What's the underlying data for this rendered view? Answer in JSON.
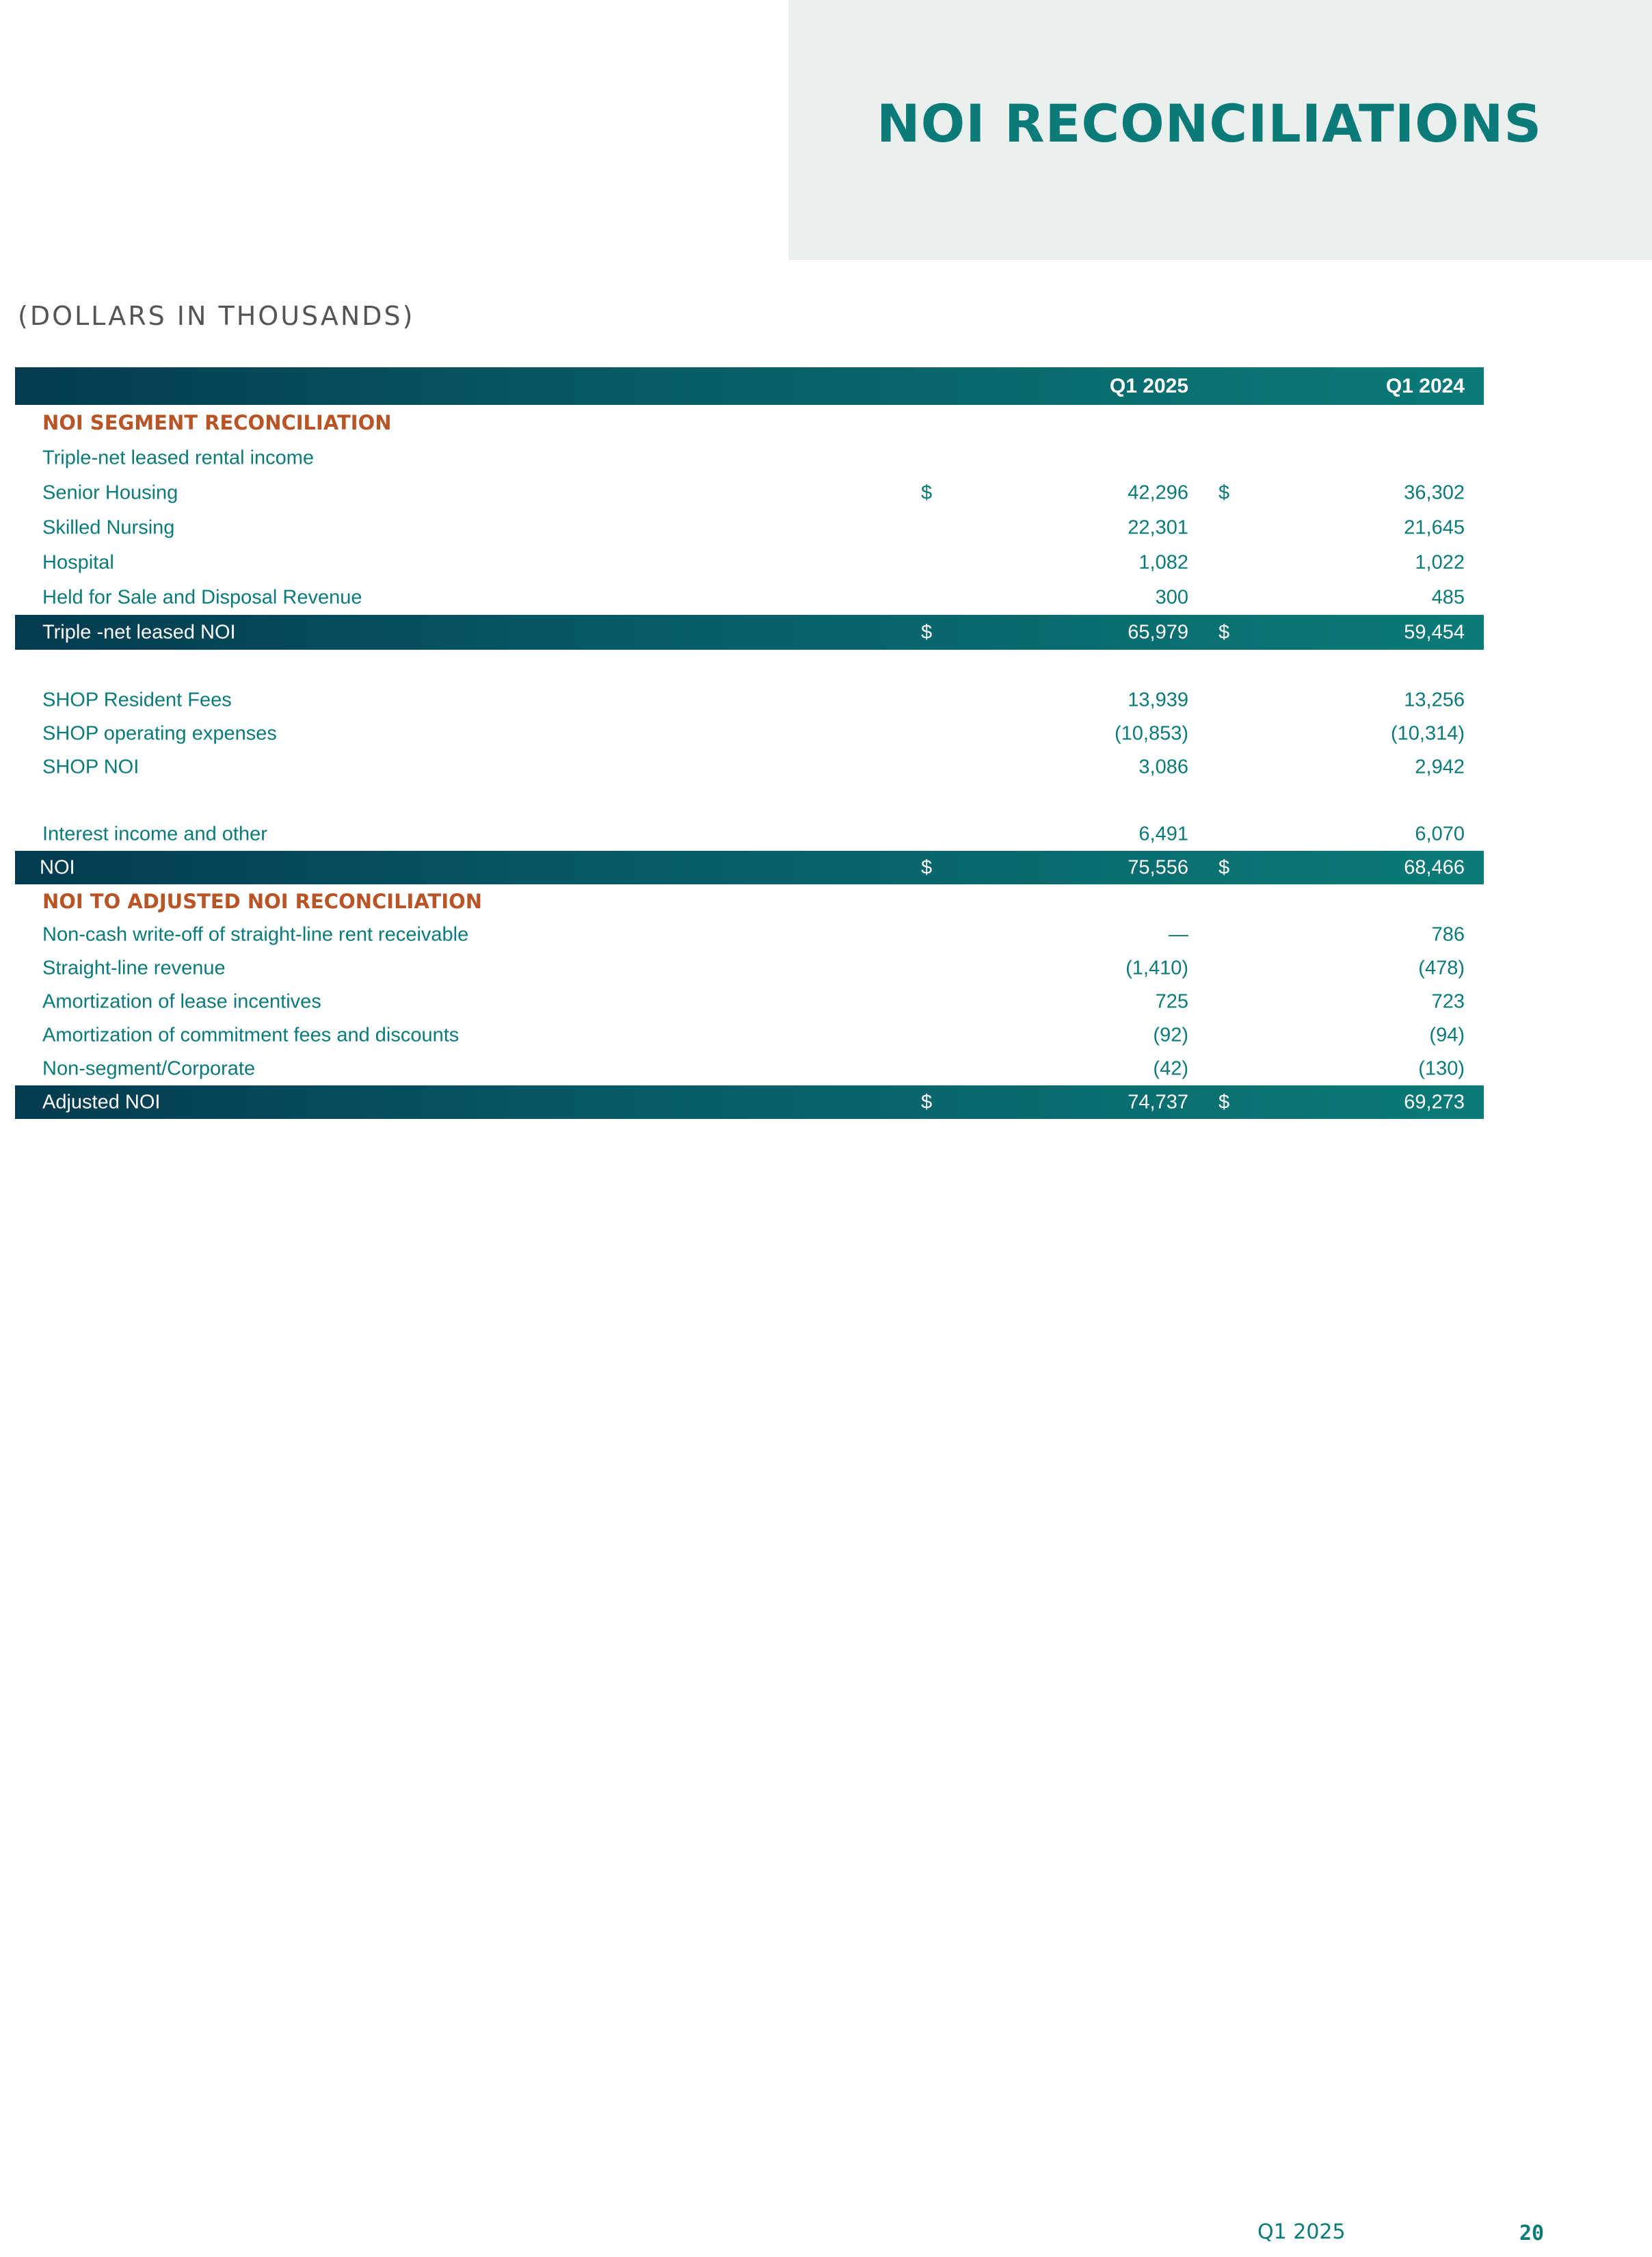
{
  "page": {
    "title": "NOI RECONCILIATIONS",
    "units": "(DOLLARS IN THOUSANDS)",
    "footer_period": "Q1 2025",
    "page_number": "20"
  },
  "table": {
    "col1": "Q1 2025",
    "col2": "Q1 2024",
    "sections": {
      "segment": "NOI SEGMENT RECONCILIATION",
      "adjusted": "NOI TO ADJUSTED NOI RECONCILIATION"
    },
    "rows": {
      "triple_net_income": {
        "label": "Triple-net leased rental income"
      },
      "senior_housing": {
        "label": "Senior Housing",
        "cur": "$",
        "v1": "42,296",
        "v2": "36,302"
      },
      "skilled_nursing": {
        "label": "Skilled Nursing",
        "v1": "22,301",
        "v2": "21,645"
      },
      "hospital": {
        "label": "Hospital",
        "v1": "1,082",
        "v2": "1,022"
      },
      "held_for_sale": {
        "label": "Held for Sale and Disposal Revenue",
        "v1": "300",
        "v2": "485"
      },
      "triple_net_noi": {
        "label": "Triple -net leased NOI",
        "cur": "$",
        "v1": "65,979",
        "v2": "59,454"
      },
      "shop_fees": {
        "label": "SHOP Resident Fees",
        "v1": "13,939",
        "v2": "13,256"
      },
      "shop_expenses": {
        "label": "SHOP operating expenses",
        "v1": "(10,853)",
        "v2": "(10,314)"
      },
      "shop_noi": {
        "label": "SHOP NOI",
        "v1": "3,086",
        "v2": "2,942"
      },
      "interest": {
        "label": "Interest income and other",
        "v1": "6,491",
        "v2": "6,070"
      },
      "noi": {
        "label": "NOI",
        "cur": "$",
        "v1": "75,556",
        "v2": "68,466"
      },
      "writeoff": {
        "label": "Non-cash write-off of straight-line rent receivable",
        "v1": "—",
        "v2": "786"
      },
      "straight_line": {
        "label": "Straight-line revenue",
        "v1": "(1,410)",
        "v2": "(478)"
      },
      "amort_lease": {
        "label": "Amortization of lease incentives",
        "v1": "725",
        "v2": "723"
      },
      "amort_commit": {
        "label": "Amortization of commitment fees and discounts",
        "v1": "(92)",
        "v2": "(94)"
      },
      "non_segment": {
        "label": "Non-segment/Corporate",
        "v1": "(42)",
        "v2": "(130)"
      },
      "adjusted_noi": {
        "label": "Adjusted NOI",
        "cur": "$",
        "v1": "74,737",
        "v2": "69,273"
      }
    }
  }
}
